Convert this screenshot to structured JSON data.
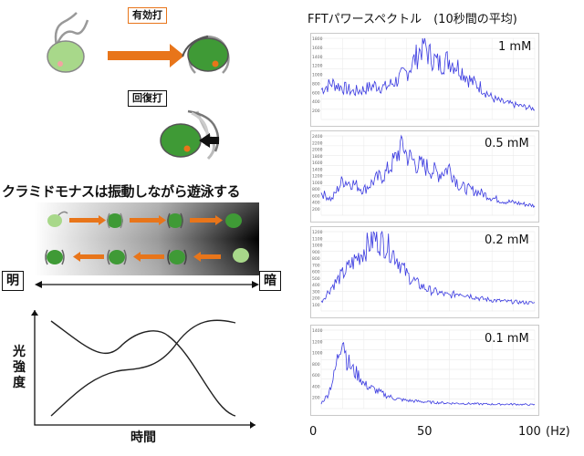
{
  "labels": {
    "effective_stroke": "有効打",
    "recovery_stroke": "回復打",
    "swim_heading": "クラミドモナスは振動しながら遊泳する",
    "light": "明",
    "dark": "暗",
    "y_axis": "光強度",
    "x_axis": "時間",
    "fft_title": "FFTパワースペクトル　(10秒間の平均)",
    "x_unit": "(Hz)"
  },
  "x_ticks": [
    "0",
    "50",
    "100"
  ],
  "y_ticks": [
    [
      "1800",
      "1600",
      "1400",
      "1200",
      "1000",
      "800",
      "600",
      "400",
      "200"
    ],
    [
      "2400",
      "2200",
      "2000",
      "1800",
      "1600",
      "1400",
      "1200",
      "1000",
      "800",
      "600",
      "400",
      "200"
    ],
    [
      "1200",
      "1100",
      "1000",
      "900",
      "800",
      "700",
      "600",
      "500",
      "400",
      "300",
      "200",
      "100"
    ],
    [
      "1400",
      "1200",
      "1000",
      "800",
      "600",
      "400",
      "200"
    ]
  ],
  "colors": {
    "accent": "#e8751a",
    "cell_green": "#3f9a36",
    "spectrum": "#3a3ae0"
  },
  "chart_data": [
    {
      "type": "line",
      "title": "1 mM",
      "xlim": [
        0,
        100
      ],
      "ylim": [
        0,
        1900
      ],
      "peak_hz": 48,
      "x": [
        0,
        5,
        10,
        15,
        20,
        25,
        30,
        35,
        40,
        45,
        48,
        50,
        55,
        60,
        65,
        70,
        75,
        80,
        85,
        90,
        95,
        100
      ],
      "y": [
        700,
        850,
        750,
        650,
        700,
        800,
        750,
        900,
        1100,
        1500,
        1800,
        1550,
        1300,
        1400,
        1200,
        900,
        750,
        500,
        400,
        350,
        300,
        250
      ]
    },
    {
      "type": "line",
      "title": "0.5 mM",
      "xlim": [
        0,
        100
      ],
      "ylim": [
        0,
        2500
      ],
      "peak_hz": 38,
      "x": [
        0,
        5,
        10,
        15,
        20,
        25,
        30,
        35,
        38,
        40,
        45,
        50,
        55,
        60,
        65,
        70,
        75,
        80,
        85,
        90,
        95,
        100
      ],
      "y": [
        700,
        500,
        1100,
        1000,
        800,
        1100,
        1300,
        1800,
        2300,
        1900,
        1600,
        1500,
        1300,
        1500,
        900,
        800,
        700,
        550,
        450,
        400,
        350,
        300
      ]
    },
    {
      "type": "line",
      "title": "0.2 mM",
      "xlim": [
        0,
        100
      ],
      "ylim": [
        0,
        1300
      ],
      "peak_hz": 25,
      "x": [
        0,
        5,
        10,
        15,
        20,
        25,
        30,
        35,
        40,
        45,
        50,
        55,
        60,
        65,
        70,
        75,
        80,
        85,
        90,
        95,
        100
      ],
      "y": [
        150,
        400,
        600,
        800,
        1000,
        1200,
        1100,
        900,
        600,
        450,
        350,
        300,
        250,
        300,
        250,
        200,
        180,
        160,
        150,
        140,
        130
      ]
    },
    {
      "type": "line",
      "title": "0.1 mM",
      "xlim": [
        0,
        100
      ],
      "ylim": [
        0,
        1450
      ],
      "peak_hz": 10,
      "x": [
        0,
        3,
        6,
        8,
        10,
        12,
        15,
        18,
        20,
        25,
        30,
        35,
        40,
        50,
        60,
        70,
        80,
        90,
        100
      ],
      "y": [
        100,
        250,
        600,
        1000,
        1400,
        900,
        700,
        600,
        450,
        350,
        250,
        180,
        150,
        120,
        100,
        90,
        80,
        80,
        70
      ]
    }
  ]
}
